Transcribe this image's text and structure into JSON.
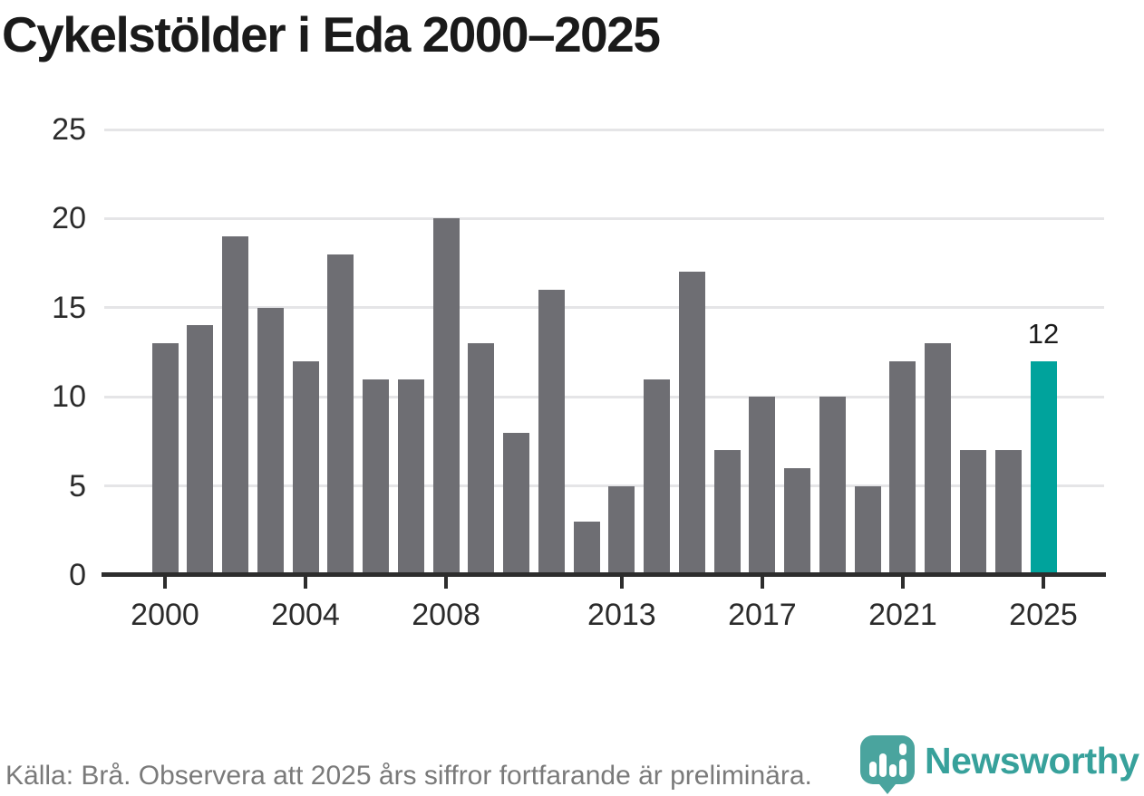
{
  "title": "Cykelstölder i Eda 2000–2025",
  "chart_data": {
    "type": "bar",
    "title": "Cykelstölder i Eda 2000–2025",
    "x": [
      2000,
      2001,
      2002,
      2003,
      2004,
      2005,
      2006,
      2007,
      2008,
      2009,
      2010,
      2011,
      2012,
      2013,
      2014,
      2015,
      2016,
      2017,
      2018,
      2019,
      2020,
      2021,
      2022,
      2023,
      2024,
      2025
    ],
    "values": [
      13,
      14,
      19,
      15,
      12,
      18,
      11,
      11,
      20,
      13,
      8,
      16,
      3,
      5,
      11,
      17,
      7,
      10,
      6,
      10,
      5,
      12,
      13,
      7,
      7,
      12
    ],
    "highlight_index": 25,
    "highlight_value_label": "12",
    "bar_color": "#6e6e73",
    "highlight_color": "#00a39c",
    "ylim": [
      0,
      25
    ],
    "yticks": [
      0,
      5,
      10,
      15,
      20,
      25
    ],
    "xticks": [
      2000,
      2004,
      2008,
      2013,
      2017,
      2021,
      2025
    ],
    "grid": "horizontal",
    "legend": "none"
  },
  "footer": {
    "source_text": "Källa: Brå. Observera att 2025 års siffror fortfarande är preliminära."
  },
  "logo": {
    "wordmark": "Newsworthy",
    "wordmark_color": "#37a19b",
    "icon_color": "#4aa49e",
    "icon_name": "newsworthy-bubble-barchart-icon"
  }
}
